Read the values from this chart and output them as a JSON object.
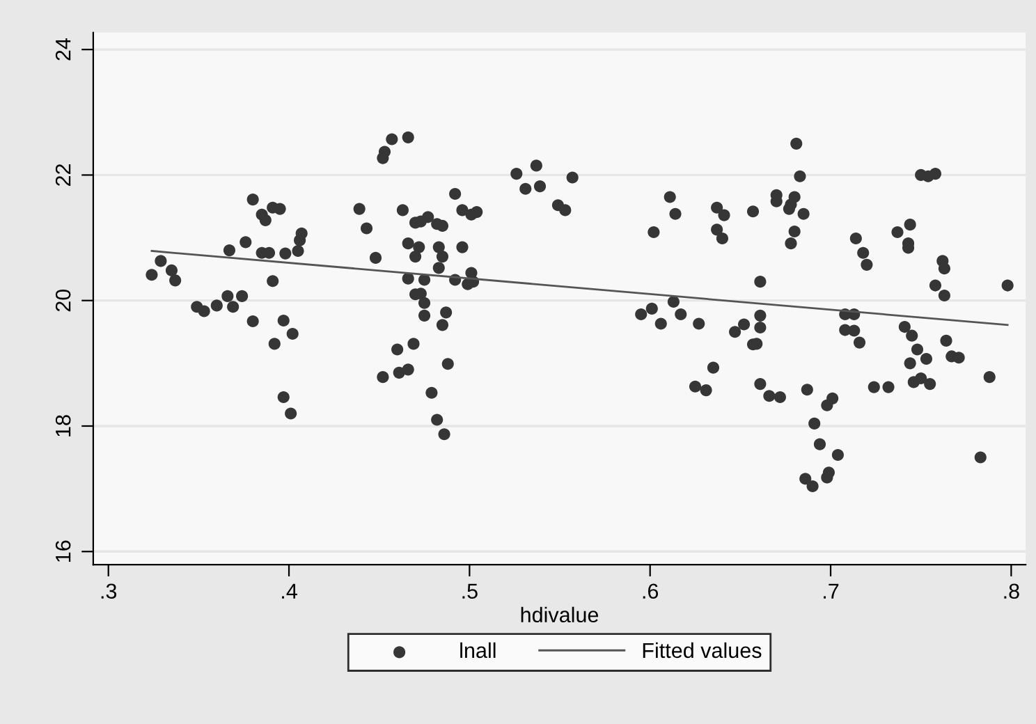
{
  "chart_data": {
    "type": "scatter",
    "xlabel": "hdivalue",
    "xlim": [
      0.2916,
      0.808
    ],
    "ylim": [
      15.79,
      24.27
    ],
    "xticks": [
      {
        "value": 0.3,
        "label": ".3"
      },
      {
        "value": 0.4,
        "label": ".4"
      },
      {
        "value": 0.5,
        "label": ".5"
      },
      {
        "value": 0.6,
        "label": ".6"
      },
      {
        "value": 0.7,
        "label": ".7"
      },
      {
        "value": 0.8,
        "label": ".8"
      }
    ],
    "yticks": [
      16,
      18,
      20,
      22,
      24
    ],
    "grid": "y",
    "legend": "bottom",
    "series": [
      {
        "name": "lnall",
        "marker": "circle",
        "color": "#363636",
        "x": [
          0.324,
          0.329,
          0.335,
          0.337,
          0.349,
          0.353,
          0.36,
          0.366,
          0.369,
          0.374,
          0.38,
          0.367,
          0.376,
          0.38,
          0.385,
          0.387,
          0.391,
          0.395,
          0.385,
          0.389,
          0.391,
          0.397,
          0.402,
          0.392,
          0.398,
          0.405,
          0.406,
          0.407,
          0.397,
          0.401,
          0.439,
          0.443,
          0.448,
          0.452,
          0.453,
          0.457,
          0.466,
          0.463,
          0.46,
          0.452,
          0.461,
          0.466,
          0.469,
          0.466,
          0.466,
          0.47,
          0.47,
          0.47,
          0.492,
          0.496,
          0.501,
          0.504,
          0.473,
          0.477,
          0.482,
          0.485,
          0.472,
          0.483,
          0.485,
          0.483,
          0.496,
          0.475,
          0.492,
          0.499,
          0.501,
          0.502,
          0.473,
          0.475,
          0.475,
          0.487,
          0.485,
          0.488,
          0.479,
          0.482,
          0.486,
          0.526,
          0.537,
          0.531,
          0.539,
          0.557,
          0.549,
          0.553,
          0.595,
          0.601,
          0.606,
          0.613,
          0.617,
          0.611,
          0.614,
          0.602,
          0.627,
          0.637,
          0.641,
          0.637,
          0.64,
          0.657,
          0.661,
          0.661,
          0.661,
          0.652,
          0.647,
          0.657,
          0.659,
          0.635,
          0.625,
          0.631,
          0.661,
          0.666,
          0.672,
          0.67,
          0.67,
          0.678,
          0.68,
          0.677,
          0.685,
          0.68,
          0.678,
          0.683,
          0.681,
          0.687,
          0.691,
          0.694,
          0.701,
          0.698,
          0.704,
          0.686,
          0.69,
          0.698,
          0.699,
          0.708,
          0.713,
          0.708,
          0.713,
          0.716,
          0.714,
          0.718,
          0.72,
          0.724,
          0.732,
          0.737,
          0.744,
          0.743,
          0.743,
          0.741,
          0.745,
          0.748,
          0.753,
          0.744,
          0.746,
          0.75,
          0.755,
          0.75,
          0.758,
          0.754,
          0.762,
          0.763,
          0.758,
          0.763,
          0.764,
          0.767,
          0.771,
          0.788,
          0.783,
          0.798
        ],
        "values": [
          20.41,
          20.63,
          20.48,
          20.32,
          19.9,
          19.83,
          19.92,
          20.07,
          19.9,
          20.07,
          19.67,
          20.8,
          20.93,
          21.61,
          21.37,
          21.28,
          21.48,
          21.46,
          20.76,
          20.76,
          20.31,
          19.68,
          19.47,
          19.31,
          20.75,
          20.79,
          20.96,
          21.07,
          18.46,
          18.2,
          21.46,
          21.15,
          20.68,
          22.27,
          22.37,
          22.57,
          22.6,
          21.44,
          19.22,
          18.78,
          18.85,
          18.9,
          19.31,
          20.35,
          20.91,
          21.24,
          20.7,
          20.1,
          21.7,
          21.44,
          21.37,
          21.41,
          21.26,
          21.33,
          21.22,
          21.19,
          20.85,
          20.85,
          20.7,
          20.52,
          20.85,
          20.33,
          20.33,
          20.26,
          20.44,
          20.3,
          20.11,
          19.96,
          19.76,
          19.81,
          19.61,
          18.99,
          18.53,
          18.1,
          17.87,
          22.02,
          22.15,
          21.78,
          21.82,
          21.96,
          21.52,
          21.44,
          19.78,
          19.87,
          19.63,
          19.98,
          19.78,
          21.65,
          21.38,
          21.09,
          19.63,
          21.48,
          21.36,
          21.13,
          20.99,
          21.42,
          20.3,
          19.76,
          19.57,
          19.62,
          19.5,
          19.3,
          19.31,
          18.93,
          18.63,
          18.57,
          18.67,
          18.48,
          18.46,
          21.68,
          21.58,
          21.53,
          21.65,
          21.46,
          21.38,
          21.1,
          20.91,
          21.98,
          22.5,
          18.58,
          18.04,
          17.71,
          18.44,
          18.33,
          17.54,
          17.16,
          17.04,
          17.18,
          17.26,
          19.78,
          19.78,
          19.53,
          19.52,
          19.33,
          20.99,
          20.76,
          20.57,
          18.62,
          18.62,
          21.09,
          21.21,
          20.91,
          20.84,
          19.58,
          19.44,
          19.22,
          19.07,
          19.0,
          18.7,
          18.76,
          18.67,
          22.0,
          22.02,
          21.98,
          20.63,
          20.51,
          20.24,
          20.08,
          19.36,
          19.11,
          19.09,
          18.78,
          17.5,
          20.24
        ]
      },
      {
        "name": "Fitted values",
        "type": "line",
        "marker": "none",
        "line_style": "solid",
        "color": "#555555",
        "x": [
          0.324,
          0.798
        ],
        "values": [
          20.79,
          19.61
        ]
      }
    ]
  }
}
